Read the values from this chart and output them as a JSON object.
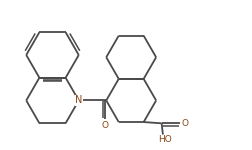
{
  "bg_color": "#ffffff",
  "line_color": "#4a4a4a",
  "N_color": "#8B4513",
  "line_width": 1.3,
  "figsize": [
    2.52,
    1.5
  ],
  "dpi": 100,
  "xlim": [
    0,
    10.08
  ],
  "ylim": [
    0,
    6.0
  ]
}
